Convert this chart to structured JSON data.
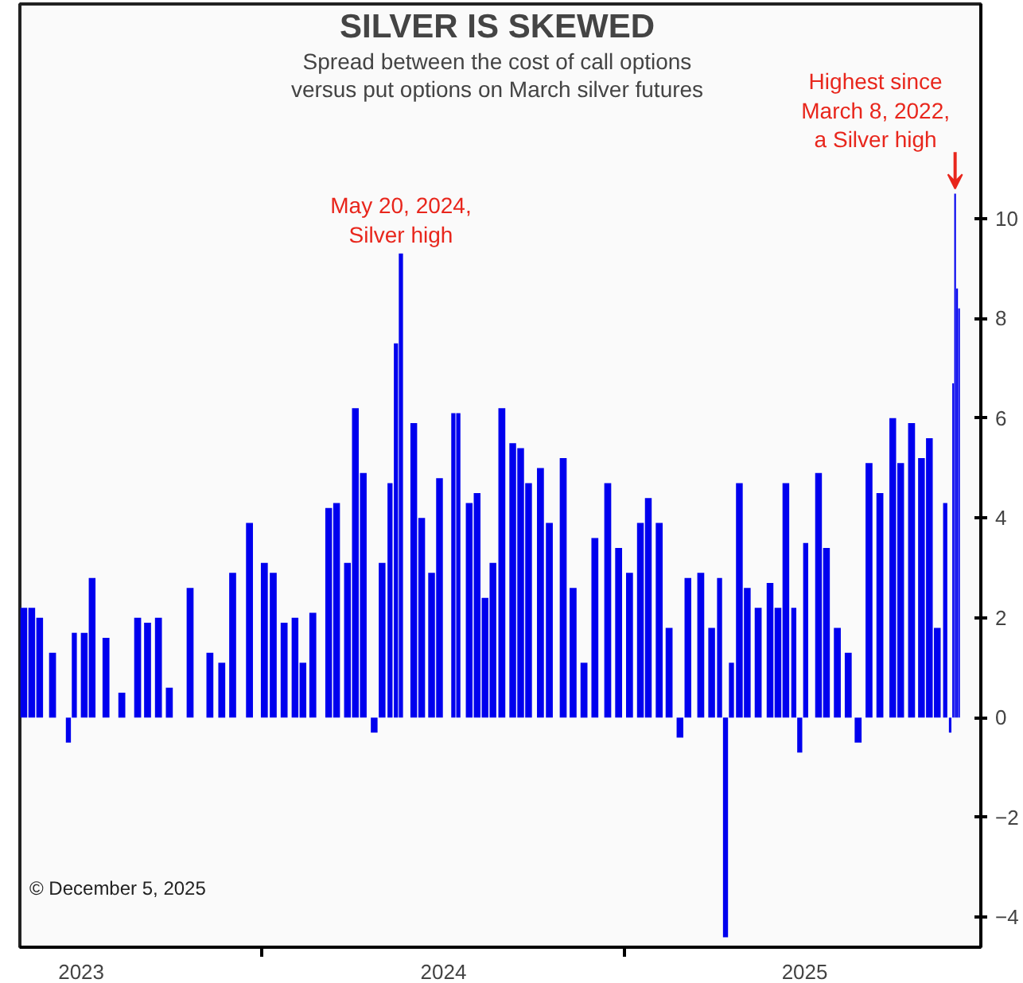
{
  "chart_data": {
    "type": "bar",
    "title": "SILVER IS SKEWED",
    "subtitle": "Spread between the cost of call options\nversus put options on March silver futures",
    "x": [
      "2023-05-05",
      "2023-05-13",
      "2023-05-21",
      "2023-06-03",
      "2023-06-19",
      "2023-06-25",
      "2023-07-05",
      "2023-07-13",
      "2023-07-27",
      "2023-08-12",
      "2023-08-28",
      "2023-09-07",
      "2023-09-18",
      "2023-09-29",
      "2023-10-20",
      "2023-11-09",
      "2023-11-21",
      "2023-12-02",
      "2023-12-19",
      "2024-01-03",
      "2024-01-12",
      "2024-01-23",
      "2024-02-03",
      "2024-02-11",
      "2024-02-21",
      "2024-03-08",
      "2024-03-16",
      "2024-03-27",
      "2024-04-04",
      "2024-04-12",
      "2024-04-23",
      "2024-05-01",
      "2024-05-09",
      "2024-05-15",
      "2024-05-20",
      "2024-06-02",
      "2024-06-10",
      "2024-06-20",
      "2024-06-28",
      "2024-07-12",
      "2024-07-17",
      "2024-07-28",
      "2024-08-05",
      "2024-08-13",
      "2024-08-21",
      "2024-08-30",
      "2024-09-10",
      "2024-09-18",
      "2024-09-26",
      "2024-10-08",
      "2024-10-17",
      "2024-10-31",
      "2024-11-10",
      "2024-11-21",
      "2024-12-02",
      "2024-12-15",
      "2024-12-26",
      "2025-01-06",
      "2025-01-17",
      "2025-01-25",
      "2025-02-05",
      "2025-02-15",
      "2025-02-26",
      "2025-03-06",
      "2025-03-19",
      "2025-03-30",
      "2025-04-07",
      "2025-04-13",
      "2025-04-19",
      "2025-04-27",
      "2025-05-05",
      "2025-05-16",
      "2025-05-28",
      "2025-06-05",
      "2025-06-13",
      "2025-06-21",
      "2025-06-27",
      "2025-07-03",
      "2025-07-16",
      "2025-07-24",
      "2025-08-04",
      "2025-08-15",
      "2025-08-25",
      "2025-09-05",
      "2025-09-16",
      "2025-09-29",
      "2025-10-07",
      "2025-10-18",
      "2025-10-28",
      "2025-11-05",
      "2025-11-13",
      "2025-11-21",
      "2025-11-26",
      "2025-11-29",
      "2025-12-01",
      "2025-12-03",
      "2025-12-05"
    ],
    "series": [
      {
        "color": "#0000ee",
        "values": [
          2.2,
          2.2,
          2.0,
          1.3,
          -0.5,
          1.7,
          1.7,
          2.8,
          1.6,
          0.5,
          2.0,
          1.9,
          2.0,
          0.6,
          2.6,
          1.3,
          1.1,
          2.9,
          3.9,
          3.1,
          2.9,
          1.9,
          2.0,
          1.1,
          2.1,
          4.2,
          4.3,
          3.1,
          6.2,
          4.9,
          -0.3,
          3.1,
          4.7,
          7.5,
          9.3,
          5.9,
          4.0,
          2.9,
          4.8,
          6.1,
          6.1,
          4.3,
          4.5,
          2.4,
          3.1,
          6.2,
          5.5,
          5.4,
          4.7,
          5.0,
          3.9,
          5.2,
          2.6,
          1.1,
          3.6,
          4.7,
          3.4,
          2.9,
          3.9,
          4.4,
          3.9,
          1.8,
          -0.4,
          2.8,
          2.9,
          1.8,
          2.8,
          -4.4,
          1.1,
          4.7,
          2.6,
          2.2,
          2.7,
          2.2,
          4.7,
          2.2,
          -0.7,
          3.5,
          4.9,
          3.4,
          1.8,
          1.3,
          -0.5,
          5.1,
          4.5,
          6.0,
          5.1,
          5.9,
          5.2,
          5.6,
          1.8,
          4.3,
          -0.3,
          6.7,
          10.5,
          8.6,
          8.2
        ]
      }
    ],
    "xlim": [
      "2023-05-01",
      "2025-12-27"
    ],
    "xticks": [
      {
        "value": "2023-07-02",
        "label": "2023"
      },
      {
        "value": "2024-01-01",
        "label": null
      },
      {
        "value": "2024-07-02",
        "label": "2024"
      },
      {
        "value": "2025-01-01",
        "label": null
      },
      {
        "value": "2025-07-02",
        "label": "2025"
      }
    ],
    "ylim": [
      -4.6,
      14.3
    ],
    "yticks": [
      -4,
      -2,
      0,
      2,
      4,
      6,
      8,
      10
    ],
    "grid": false,
    "annotations": [
      {
        "text": "May 20, 2024,\nSilver high",
        "x": "2024-05-20",
        "y": 9.3
      },
      {
        "text": "Highest since\nMarch 8, 2022,\na Silver high",
        "x": "2025-12-01",
        "y": 10.5
      },
      "© December 5, 2025"
    ]
  }
}
